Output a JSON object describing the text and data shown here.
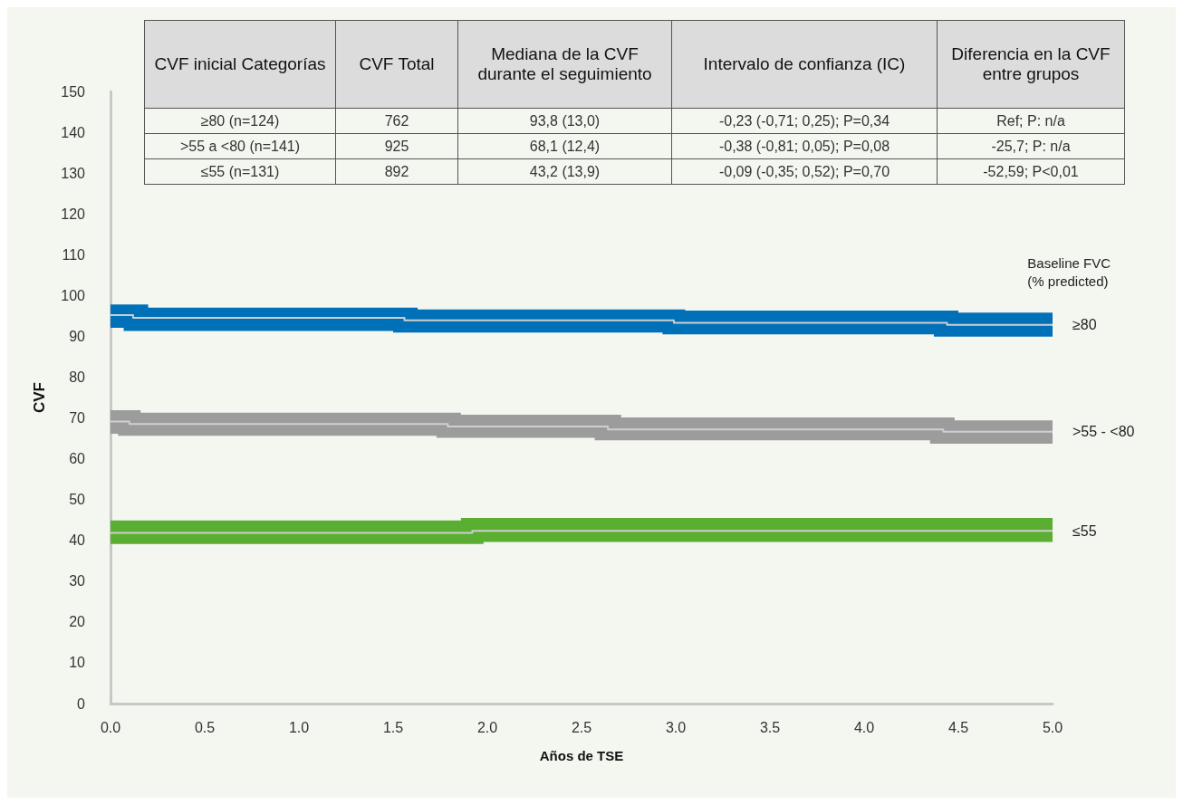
{
  "chart_data": {
    "type": "step",
    "xlabel": "Años de TSE",
    "ylabel": "CVF",
    "legend_title": "Baseline FVC\n(% predicted)",
    "marker": "none",
    "xlim": [
      0,
      5
    ],
    "xticks": [
      {
        "value": 0,
        "label": "0.0"
      },
      {
        "value": 0.5,
        "label": "0.5"
      },
      {
        "value": 1,
        "label": "1.0"
      },
      {
        "value": 1.5,
        "label": "1.5"
      },
      {
        "value": 2,
        "label": "2.0"
      },
      {
        "value": 2.5,
        "label": "2.5"
      },
      {
        "value": 3,
        "label": "3.0"
      },
      {
        "value": 3.5,
        "label": "3.5"
      },
      {
        "value": 4,
        "label": "4.0"
      },
      {
        "value": 4.5,
        "label": "4.5"
      },
      {
        "value": 5,
        "label": "5.0"
      }
    ],
    "ylim": [
      0,
      150
    ],
    "yticks": [
      0,
      10,
      20,
      30,
      40,
      50,
      60,
      70,
      80,
      90,
      100,
      110,
      120,
      130,
      140,
      150
    ],
    "series": [
      {
        "type": "area",
        "color": "#0070b8",
        "x": [
          0,
          0.07,
          0.12,
          0.2,
          1.5,
          1.56,
          1.63,
          2.93,
          2.99,
          3.05,
          4.37,
          4.44,
          4.5,
          5
        ],
        "values": [
          null,
          null,
          null,
          null,
          null,
          null,
          null,
          null,
          null,
          null,
          null,
          null,
          null,
          null
        ],
        "upper": [
          97.8,
          97.8,
          97.8,
          97.0,
          97.0,
          97.0,
          96.6,
          96.6,
          96.6,
          96.3,
          96.3,
          96.3,
          95.8,
          95.8
        ],
        "lower": [
          92.1,
          91.3,
          91.3,
          91.3,
          90.9,
          90.9,
          90.9,
          90.5,
          90.5,
          90.5,
          89.9,
          89.9,
          89.9,
          89.9
        ]
      },
      {
        "name": "≥80",
        "color": "#cfcfcf",
        "x": [
          0,
          0.12,
          1.56,
          2.99,
          4.44,
          5
        ],
        "values": [
          95.2,
          94.5,
          93.9,
          93.3,
          92.8,
          92.8
        ]
      },
      {
        "type": "area",
        "color": "#9c9c9c",
        "x": [
          0,
          0.04,
          0.1,
          0.16,
          1.73,
          1.79,
          1.86,
          2.57,
          2.64,
          2.71,
          4.35,
          4.42,
          4.48,
          5
        ],
        "values": [
          null,
          null,
          null,
          null,
          null,
          null,
          null,
          null,
          null,
          null,
          null,
          null,
          null,
          null
        ],
        "upper": [
          71.9,
          71.9,
          71.9,
          71.3,
          71.3,
          71.3,
          70.8,
          70.8,
          70.8,
          70.1,
          70.1,
          70.1,
          69.4,
          69.4
        ],
        "lower": [
          66.1,
          65.6,
          65.6,
          65.6,
          65.1,
          65.1,
          65.1,
          64.5,
          64.5,
          64.5,
          63.7,
          63.7,
          63.7,
          63.7
        ]
      },
      {
        "name": ">55 - <80",
        "color": "#cfcfcf",
        "x": [
          0,
          0.1,
          1.79,
          2.64,
          4.42,
          5
        ],
        "values": [
          69.1,
          68.5,
          67.9,
          67.2,
          66.6,
          66.6
        ]
      },
      {
        "type": "area",
        "color": "#5aae32",
        "x": [
          0,
          1.86,
          1.98,
          5
        ],
        "values": [
          null,
          null,
          null,
          null
        ],
        "upper": [
          44.9,
          45.5,
          45.5,
          45.5
        ],
        "lower": [
          39.1,
          39.1,
          39.6,
          39.6
        ]
      },
      {
        "name": "≤55",
        "color": "#cfcfcf",
        "x": [
          0,
          1.92,
          5
        ],
        "values": [
          41.8,
          42.3,
          42.3
        ]
      }
    ],
    "annotations": [
      "CVF inicial Categorías",
      "CVF Total",
      "Mediana de la CVF durante el seguimiento",
      "Intervalo de confianza (IC)",
      "Diferencia en la CVF entre grupos",
      "≥80 (n=124)",
      "762",
      "93,8 (13,0)",
      "-0,23 (-0,71; 0,25); P=0,34",
      "Ref; P: n/a",
      ">55 a <80 (n=141)",
      "925",
      "68,1 (12,4)",
      "-0,38 (-0,81; 0,05); P=0,08",
      "-25,7; P: n/a",
      "≤55 (n=131)",
      "892",
      "43,2 (13,9)",
      "-0,09 (-0,35; 0,52); P=0,70",
      "-52,59; P<0,01"
    ]
  }
}
